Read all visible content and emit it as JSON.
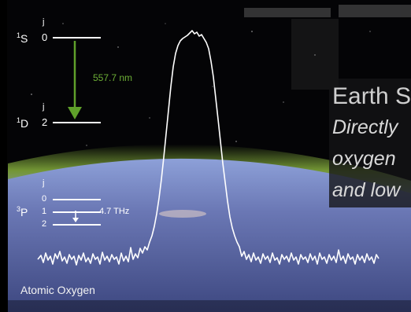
{
  "colors": {
    "space": "#040406",
    "atmosphere_glow": "#7fa63a",
    "earth_blue": "#5c6aa8",
    "transition_arrow": "#5fa02a",
    "wavelength_text": "#6cae35",
    "spectrum_line": "#ffffff"
  },
  "upper_levels": {
    "s_state": "S",
    "s_multiplicity": "1",
    "s_j_label": "j",
    "s_j_value": "0",
    "d_state": "D",
    "d_multiplicity": "1",
    "d_j_label": "j",
    "d_j_value": "2",
    "transition_wavelength": "557.7 nm"
  },
  "lower_levels": {
    "p_state": "P",
    "p_multiplicity": "3",
    "j_label": "j",
    "j_values": [
      "0",
      "1",
      "2"
    ],
    "transition_frequency": "4.7 THz"
  },
  "spectrum_caption": "Atomic Oxygen",
  "overlay_text": {
    "line1": "Earth S",
    "line2": "Directly",
    "line3": "oxygen",
    "line4": "and low"
  },
  "icons": [
    "downward-arrow-icon"
  ]
}
